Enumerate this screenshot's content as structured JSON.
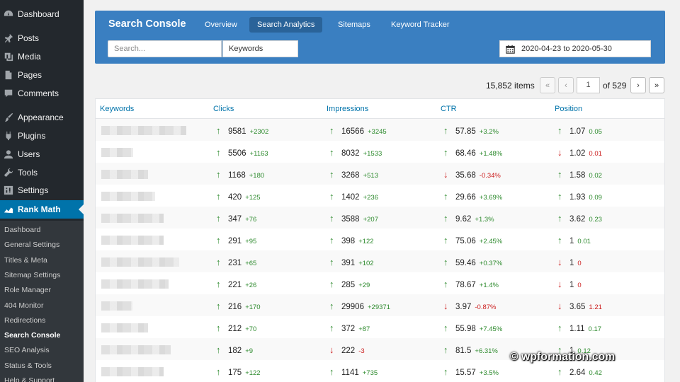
{
  "sidebar": {
    "items": [
      {
        "label": "Dashboard",
        "icon": "dashboard-icon"
      },
      {
        "label": "Posts",
        "icon": "pin-icon"
      },
      {
        "label": "Media",
        "icon": "media-icon"
      },
      {
        "label": "Pages",
        "icon": "pages-icon"
      },
      {
        "label": "Comments",
        "icon": "comment-icon"
      },
      {
        "label": "Appearance",
        "icon": "brush-icon"
      },
      {
        "label": "Plugins",
        "icon": "plug-icon"
      },
      {
        "label": "Users",
        "icon": "user-icon"
      },
      {
        "label": "Tools",
        "icon": "wrench-icon"
      },
      {
        "label": "Settings",
        "icon": "settings-icon"
      },
      {
        "label": "Rank Math",
        "icon": "rank-math-icon",
        "active": true
      }
    ],
    "submenu": [
      "Dashboard",
      "General Settings",
      "Titles & Meta",
      "Sitemap Settings",
      "Role Manager",
      "404 Monitor",
      "Redirections",
      "Search Console",
      "SEO Analysis",
      "Status & Tools",
      "Help & Support"
    ],
    "submenu_current": "Search Console"
  },
  "header": {
    "title": "Search Console",
    "tabs": [
      "Overview",
      "Search Analytics",
      "Sitemaps",
      "Keyword Tracker"
    ],
    "active_tab": "Search Analytics",
    "search_placeholder": "Search...",
    "dimension_select": "Keywords",
    "date_range": "2020-04-23 to 2020-05-30"
  },
  "pagination": {
    "items_count": "15,852 items",
    "first": "«",
    "prev": "‹",
    "current_page": "1",
    "of_pages": "of 529",
    "next": "›",
    "last": "»"
  },
  "table": {
    "columns": [
      "Keywords",
      "Clicks",
      "Impressions",
      "CTR",
      "Position"
    ],
    "rows": [
      {
        "clicks": {
          "v": "9581",
          "d": "+2302",
          "up": true
        },
        "impressions": {
          "v": "16566",
          "d": "+3245",
          "up": true
        },
        "ctr": {
          "v": "57.85",
          "d": "+3.2%",
          "up": true
        },
        "position": {
          "v": "1.07",
          "d": "0.05",
          "up": true
        }
      },
      {
        "clicks": {
          "v": "5506",
          "d": "+1163",
          "up": true
        },
        "impressions": {
          "v": "8032",
          "d": "+1533",
          "up": true
        },
        "ctr": {
          "v": "68.46",
          "d": "+1.48%",
          "up": true
        },
        "position": {
          "v": "1.02",
          "d": "0.01",
          "up": false
        }
      },
      {
        "clicks": {
          "v": "1168",
          "d": "+180",
          "up": true
        },
        "impressions": {
          "v": "3268",
          "d": "+513",
          "up": true
        },
        "ctr": {
          "v": "35.68",
          "d": "-0.34%",
          "up": false
        },
        "position": {
          "v": "1.58",
          "d": "0.02",
          "up": true
        }
      },
      {
        "clicks": {
          "v": "420",
          "d": "+125",
          "up": true
        },
        "impressions": {
          "v": "1402",
          "d": "+236",
          "up": true
        },
        "ctr": {
          "v": "29.66",
          "d": "+3.69%",
          "up": true
        },
        "position": {
          "v": "1.93",
          "d": "0.09",
          "up": true
        }
      },
      {
        "clicks": {
          "v": "347",
          "d": "+76",
          "up": true
        },
        "impressions": {
          "v": "3588",
          "d": "+207",
          "up": true
        },
        "ctr": {
          "v": "9.62",
          "d": "+1.3%",
          "up": true
        },
        "position": {
          "v": "3.62",
          "d": "0.23",
          "up": true
        }
      },
      {
        "clicks": {
          "v": "291",
          "d": "+95",
          "up": true
        },
        "impressions": {
          "v": "398",
          "d": "+122",
          "up": true
        },
        "ctr": {
          "v": "75.06",
          "d": "+2.45%",
          "up": true
        },
        "position": {
          "v": "1",
          "d": "0.01",
          "up": true
        }
      },
      {
        "clicks": {
          "v": "231",
          "d": "+65",
          "up": true
        },
        "impressions": {
          "v": "391",
          "d": "+102",
          "up": true
        },
        "ctr": {
          "v": "59.46",
          "d": "+0.37%",
          "up": true
        },
        "position": {
          "v": "1",
          "d": "0",
          "up": false
        }
      },
      {
        "clicks": {
          "v": "221",
          "d": "+26",
          "up": true
        },
        "impressions": {
          "v": "285",
          "d": "+29",
          "up": true
        },
        "ctr": {
          "v": "78.67",
          "d": "+1.4%",
          "up": true
        },
        "position": {
          "v": "1",
          "d": "0",
          "up": false
        }
      },
      {
        "clicks": {
          "v": "216",
          "d": "+170",
          "up": true
        },
        "impressions": {
          "v": "29906",
          "d": "+29371",
          "up": true
        },
        "ctr": {
          "v": "3.97",
          "d": "-0.87%",
          "up": false
        },
        "position": {
          "v": "3.65",
          "d": "1.21",
          "up": false
        }
      },
      {
        "clicks": {
          "v": "212",
          "d": "+70",
          "up": true
        },
        "impressions": {
          "v": "372",
          "d": "+87",
          "up": true
        },
        "ctr": {
          "v": "55.98",
          "d": "+7.45%",
          "up": true
        },
        "position": {
          "v": "1.11",
          "d": "0.17",
          "up": true
        }
      },
      {
        "clicks": {
          "v": "182",
          "d": "+9",
          "up": true
        },
        "impressions": {
          "v": "222",
          "d": "-3",
          "up": false
        },
        "ctr": {
          "v": "81.5",
          "d": "+6.31%",
          "up": true
        },
        "position": {
          "v": "1",
          "d": "0.12",
          "up": true
        }
      },
      {
        "clicks": {
          "v": "175",
          "d": "+122",
          "up": true
        },
        "impressions": {
          "v": "1141",
          "d": "+735",
          "up": true
        },
        "ctr": {
          "v": "15.57",
          "d": "+3.5%",
          "up": true
        },
        "position": {
          "v": "2.64",
          "d": "0.42",
          "up": true
        }
      }
    ]
  },
  "watermark": "© wpformation.com",
  "colors": {
    "accent": "#0073aa",
    "header_bg": "#3a7fc1",
    "sidebar_bg": "#23282d",
    "up": "#2d8a2d",
    "down": "#cc2020"
  }
}
